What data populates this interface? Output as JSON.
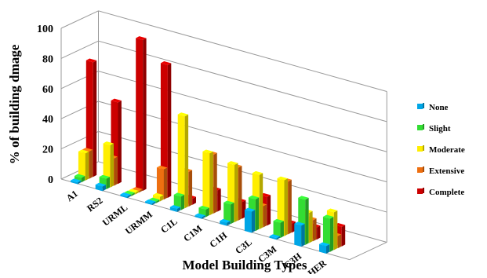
{
  "chart_data": {
    "type": "bar",
    "subtype": "3d-grouped-column",
    "xlabel": "Model Building Types",
    "ylabel": "% of building dmage",
    "ylim": [
      0,
      100
    ],
    "yticks": [
      "0",
      "20",
      "40",
      "60",
      "80",
      "100"
    ],
    "grid": true,
    "legend_position": "right",
    "categories": [
      "A1",
      "RS2",
      "URML",
      "URMM",
      "C1L",
      "C1M",
      "C1H",
      "C3L",
      "C3M",
      "C3H",
      "HER"
    ],
    "series": [
      {
        "name": "None",
        "color": "#00a6e6",
        "values": [
          1,
          3,
          1,
          1,
          2,
          1,
          2,
          14,
          1,
          14,
          5
        ]
      },
      {
        "name": "Slight",
        "color": "#33dd33",
        "values": [
          3,
          7,
          1,
          1,
          9,
          5,
          13,
          21,
          10,
          30,
          22
        ]
      },
      {
        "name": "Moderate",
        "color": "#ffee00",
        "values": [
          18,
          28,
          1,
          3,
          61,
          41,
          38,
          36,
          37,
          20,
          25
        ]
      },
      {
        "name": "Extensive",
        "color": "#ee6f10",
        "values": [
          18,
          18,
          1,
          20,
          23,
          39,
          35,
          14,
          35,
          14,
          8
        ]
      },
      {
        "name": "Complete",
        "color": "#cc0000",
        "values": [
          76,
          54,
          100,
          88,
          4,
          14,
          11,
          19,
          6,
          8,
          13
        ]
      }
    ]
  }
}
